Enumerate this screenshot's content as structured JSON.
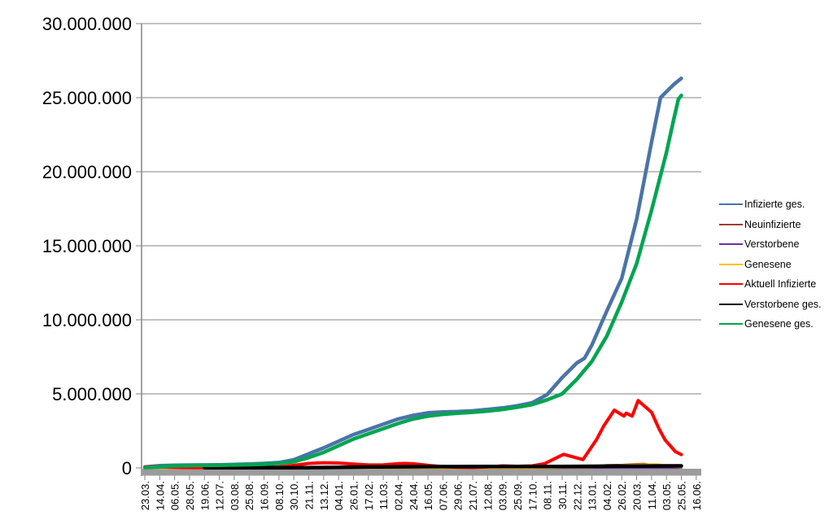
{
  "chart_data": {
    "type": "line",
    "title": "",
    "xlabel": "",
    "ylabel": "",
    "values_unit": "millions",
    "grid": true,
    "legend_position": "right",
    "y_axis": {
      "min_millions": 0,
      "max_millions": 30,
      "tick_step_millions": 5,
      "tick_labels": [
        "30.000.000",
        "25.000.000",
        "20.000.000",
        "15.000.000",
        "10.000.000",
        "5.000.000",
        "0"
      ]
    },
    "x_axis": {
      "tick_labels": [
        "23.03.",
        "14.04.",
        "06.05.",
        "28.05.",
        "19.06.",
        "12.07.",
        "03.08.",
        "25.08.",
        "16.09.",
        "08.10.",
        "30.10.",
        "21.11.",
        "13.12.",
        "04.01.",
        "26.01.",
        "17.02.",
        "11.03.",
        "02.04.",
        "24.04.",
        "16.05.",
        "07.06.",
        "29.06.",
        "21.07.",
        "12.08.",
        "03.09.",
        "25.09.",
        "17.10.",
        "08.11.",
        "30.11.",
        "22.12.",
        "13.01.",
        "04.02.",
        "26.02.",
        "20.03.",
        "11.04.",
        "03.05.",
        "25.05.",
        "16.06."
      ]
    },
    "series": [
      {
        "name": "Infizierte ges.",
        "color": "#4A74A8",
        "width": 4.5,
        "points": [
          [
            0,
            0.06
          ],
          [
            1,
            0.15
          ],
          [
            2,
            0.18
          ],
          [
            3,
            0.19
          ],
          [
            4,
            0.2
          ],
          [
            5,
            0.21
          ],
          [
            6,
            0.23
          ],
          [
            7,
            0.26
          ],
          [
            8,
            0.3
          ],
          [
            9,
            0.36
          ],
          [
            10,
            0.55
          ],
          [
            11,
            0.95
          ],
          [
            12,
            1.35
          ],
          [
            13,
            1.8
          ],
          [
            14,
            2.25
          ],
          [
            15,
            2.6
          ],
          [
            16,
            2.95
          ],
          [
            17,
            3.3
          ],
          [
            18,
            3.55
          ],
          [
            19,
            3.72
          ],
          [
            20,
            3.78
          ],
          [
            21,
            3.8
          ],
          [
            22,
            3.85
          ],
          [
            23,
            3.95
          ],
          [
            24,
            4.05
          ],
          [
            25,
            4.2
          ],
          [
            26,
            4.4
          ],
          [
            27,
            4.95
          ],
          [
            28,
            6.1
          ],
          [
            29,
            7.1
          ],
          [
            29.5,
            7.4
          ],
          [
            30,
            8.3
          ],
          [
            31,
            10.6
          ],
          [
            32,
            12.8
          ],
          [
            33,
            16.8
          ],
          [
            34,
            22.0
          ],
          [
            34.6,
            25.0
          ],
          [
            35,
            25.4
          ],
          [
            35.5,
            25.9
          ],
          [
            36,
            26.3
          ]
        ]
      },
      {
        "name": "Neuinfizierte",
        "color": "#9E3D34",
        "width": 3,
        "points": [
          [
            0,
            0.004
          ],
          [
            2,
            0.003
          ],
          [
            4,
            0.001
          ],
          [
            6,
            0.001
          ],
          [
            8,
            0.002
          ],
          [
            9,
            0.004
          ],
          [
            10,
            0.013
          ],
          [
            11,
            0.02
          ],
          [
            12,
            0.022
          ],
          [
            13,
            0.025
          ],
          [
            14,
            0.015
          ],
          [
            15,
            0.01
          ],
          [
            16,
            0.013
          ],
          [
            17,
            0.02
          ],
          [
            18,
            0.022
          ],
          [
            19,
            0.012
          ],
          [
            20,
            0.004
          ],
          [
            21,
            0.001
          ],
          [
            22,
            0.002
          ],
          [
            23,
            0.008
          ],
          [
            24,
            0.012
          ],
          [
            25,
            0.008
          ],
          [
            26,
            0.01
          ],
          [
            27,
            0.03
          ],
          [
            28,
            0.05
          ],
          [
            29,
            0.045
          ],
          [
            30,
            0.09
          ],
          [
            31,
            0.18
          ],
          [
            32,
            0.19
          ],
          [
            33,
            0.25
          ],
          [
            33.5,
            0.27
          ],
          [
            34,
            0.19
          ],
          [
            35,
            0.09
          ],
          [
            36,
            0.05
          ]
        ]
      },
      {
        "name": "Verstorbene",
        "color": "#7030A0",
        "width": 2.5,
        "points": [
          [
            0,
            0.002
          ],
          [
            6,
            0.002
          ],
          [
            12,
            0.003
          ],
          [
            18,
            0.002
          ],
          [
            24,
            0.002
          ],
          [
            30,
            0.003
          ],
          [
            36,
            0.003
          ]
        ]
      },
      {
        "name": "Genesene",
        "color": "#FFC000",
        "width": 3,
        "points": [
          [
            0,
            0.002
          ],
          [
            4,
            0.001
          ],
          [
            8,
            0.002
          ],
          [
            10,
            0.008
          ],
          [
            11,
            0.015
          ],
          [
            12,
            0.02
          ],
          [
            13,
            0.022
          ],
          [
            14,
            0.02
          ],
          [
            15,
            0.012
          ],
          [
            16,
            0.012
          ],
          [
            17,
            0.018
          ],
          [
            18,
            0.022
          ],
          [
            19,
            0.015
          ],
          [
            20,
            0.006
          ],
          [
            21,
            0.002
          ],
          [
            22,
            0.002
          ],
          [
            23,
            0.006
          ],
          [
            24,
            0.01
          ],
          [
            25,
            0.008
          ],
          [
            26,
            0.008
          ],
          [
            27,
            0.02
          ],
          [
            28,
            0.04
          ],
          [
            29,
            0.05
          ],
          [
            30,
            0.07
          ],
          [
            31,
            0.13
          ],
          [
            32,
            0.18
          ],
          [
            33,
            0.21
          ],
          [
            34,
            0.23
          ],
          [
            34.5,
            0.22
          ],
          [
            35,
            0.13
          ],
          [
            36,
            0.06
          ]
        ]
      },
      {
        "name": "Aktuell Infizierte",
        "color": "#FF0000",
        "width": 4,
        "points": [
          [
            0,
            0.06
          ],
          [
            0.5,
            0.08
          ],
          [
            1,
            0.07
          ],
          [
            2,
            0.04
          ],
          [
            3,
            0.02
          ],
          [
            4,
            0.01
          ],
          [
            5,
            0.01
          ],
          [
            6,
            0.02
          ],
          [
            7,
            0.03
          ],
          [
            8,
            0.04
          ],
          [
            9,
            0.07
          ],
          [
            10,
            0.17
          ],
          [
            11,
            0.3
          ],
          [
            12,
            0.35
          ],
          [
            13,
            0.33
          ],
          [
            14,
            0.26
          ],
          [
            15,
            0.2
          ],
          [
            16,
            0.21
          ],
          [
            17,
            0.29
          ],
          [
            17.5,
            0.3
          ],
          [
            18,
            0.28
          ],
          [
            19,
            0.17
          ],
          [
            20,
            0.08
          ],
          [
            21,
            0.04
          ],
          [
            22,
            0.03
          ],
          [
            23,
            0.07
          ],
          [
            24,
            0.14
          ],
          [
            25,
            0.11
          ],
          [
            26,
            0.14
          ],
          [
            26.8,
            0.28
          ],
          [
            28.1,
            0.92
          ],
          [
            29.4,
            0.56
          ],
          [
            30.3,
            1.9
          ],
          [
            30.8,
            2.85
          ],
          [
            31.5,
            3.9
          ],
          [
            32.15,
            3.5
          ],
          [
            32.3,
            3.7
          ],
          [
            32.7,
            3.5
          ],
          [
            33.1,
            4.55
          ],
          [
            34,
            3.76
          ],
          [
            34.5,
            2.65
          ],
          [
            34.9,
            1.9
          ],
          [
            35.6,
            1.1
          ],
          [
            36,
            0.9
          ]
        ]
      },
      {
        "name": "Verstorbene ges.",
        "color": "#000000",
        "width": 4.5,
        "points": [
          [
            4,
            0.009
          ],
          [
            6,
            0.009
          ],
          [
            8,
            0.01
          ],
          [
            9,
            0.01
          ],
          [
            10,
            0.011
          ],
          [
            11,
            0.014
          ],
          [
            12,
            0.025
          ],
          [
            13,
            0.038
          ],
          [
            14,
            0.053
          ],
          [
            15,
            0.065
          ],
          [
            16,
            0.073
          ],
          [
            17,
            0.077
          ],
          [
            18,
            0.081
          ],
          [
            19,
            0.086
          ],
          [
            20,
            0.089
          ],
          [
            21,
            0.09
          ],
          [
            22,
            0.091
          ],
          [
            23,
            0.092
          ],
          [
            24,
            0.092
          ],
          [
            25,
            0.093
          ],
          [
            26,
            0.094
          ],
          [
            27,
            0.096
          ],
          [
            28,
            0.1
          ],
          [
            29,
            0.105
          ],
          [
            30,
            0.112
          ],
          [
            31,
            0.118
          ],
          [
            32,
            0.122
          ],
          [
            33,
            0.126
          ],
          [
            34,
            0.131
          ],
          [
            35,
            0.136
          ],
          [
            36,
            0.14
          ]
        ]
      },
      {
        "name": "Genesene ges.",
        "color": "#00A551",
        "width": 4.5,
        "points": [
          [
            0,
            0.02
          ],
          [
            1,
            0.07
          ],
          [
            2,
            0.14
          ],
          [
            3,
            0.16
          ],
          [
            4,
            0.17
          ],
          [
            5,
            0.18
          ],
          [
            6,
            0.2
          ],
          [
            7,
            0.22
          ],
          [
            8,
            0.25
          ],
          [
            9,
            0.3
          ],
          [
            10,
            0.42
          ],
          [
            11,
            0.7
          ],
          [
            12,
            1.05
          ],
          [
            13,
            1.5
          ],
          [
            14,
            1.95
          ],
          [
            15,
            2.3
          ],
          [
            16,
            2.65
          ],
          [
            17,
            3.0
          ],
          [
            18,
            3.3
          ],
          [
            19,
            3.5
          ],
          [
            20,
            3.62
          ],
          [
            21,
            3.7
          ],
          [
            22,
            3.76
          ],
          [
            23,
            3.84
          ],
          [
            24,
            3.95
          ],
          [
            25,
            4.1
          ],
          [
            26,
            4.28
          ],
          [
            27,
            4.6
          ],
          [
            28,
            5.0
          ],
          [
            29,
            6.0
          ],
          [
            30,
            7.2
          ],
          [
            31,
            8.9
          ],
          [
            32,
            11.2
          ],
          [
            33,
            13.8
          ],
          [
            34,
            17.4
          ],
          [
            35,
            21.3
          ],
          [
            35.5,
            23.6
          ],
          [
            35.8,
            24.9
          ],
          [
            36,
            25.15
          ]
        ]
      }
    ]
  },
  "styles": {
    "grid_color": "#858585",
    "axis_color": "#858585",
    "baseline_bar_color": "#9C9C9C",
    "text_color": "#000000",
    "background": "#FFFFFF"
  }
}
